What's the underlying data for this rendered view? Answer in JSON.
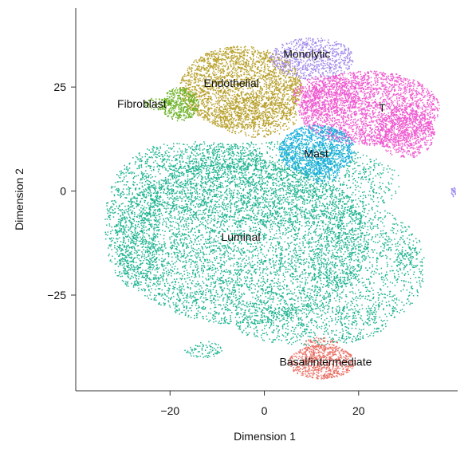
{
  "chart_data": {
    "type": "scatter",
    "xlabel": "Dimension 1",
    "ylabel": "Dimension 2",
    "xlim": [
      -40,
      41
    ],
    "ylim": [
      -48,
      44
    ],
    "x_ticks": [
      {
        "value": -20,
        "label": "−20"
      },
      {
        "value": 0,
        "label": "0"
      },
      {
        "value": 20,
        "label": "20"
      }
    ],
    "y_ticks": [
      {
        "value": 25,
        "label": "25"
      },
      {
        "value": 0,
        "label": "0"
      },
      {
        "value": -25,
        "label": "−25"
      }
    ],
    "grid": false,
    "legend": "none",
    "clusters": [
      {
        "name": "Luminal",
        "label": "Luminal",
        "color": "#1fb391",
        "label_pos": [
          -5,
          -11
        ],
        "blobs": [
          {
            "cx": -5,
            "cy": -12,
            "rx": 27,
            "ry": 20,
            "n": 5200
          },
          {
            "cx": 1,
            "cy": 2,
            "rx": 28,
            "ry": 10,
            "n": 1600
          },
          {
            "cx": -28,
            "cy": -8,
            "rx": 6,
            "ry": 15,
            "n": 700
          },
          {
            "cx": 22,
            "cy": -18,
            "rx": 12,
            "ry": 14,
            "n": 900
          },
          {
            "cx": 10,
            "cy": -32,
            "rx": 16,
            "ry": 5,
            "n": 600
          },
          {
            "cx": -14,
            "cy": 8,
            "rx": 14,
            "ry": 4,
            "n": 500
          },
          {
            "cx": -13,
            "cy": -38,
            "rx": 4,
            "ry": 2,
            "n": 80
          },
          {
            "cx": 30,
            "cy": -16,
            "rx": 3,
            "ry": 3,
            "n": 60
          }
        ]
      },
      {
        "name": "Endothelial",
        "label": "Endothelial",
        "color": "#b8a12d",
        "label_pos": [
          -7,
          26
        ],
        "blobs": [
          {
            "cx": -5,
            "cy": 25,
            "rx": 13,
            "ry": 10,
            "n": 2600
          },
          {
            "cx": -2,
            "cy": 18,
            "rx": 9,
            "ry": 5,
            "n": 400
          }
        ]
      },
      {
        "name": "Fibroblast",
        "label": "Fibroblast",
        "color": "#6cb227",
        "label_pos": [
          -26,
          21
        ],
        "blobs": [
          {
            "cx": -18,
            "cy": 21,
            "rx": 4,
            "ry": 4,
            "n": 420
          },
          {
            "cx": -23,
            "cy": 21,
            "rx": 3,
            "ry": 1.5,
            "n": 60
          }
        ]
      },
      {
        "name": "Monolytic",
        "label": "Monolytic",
        "color": "#a188ea",
        "label_pos": [
          9,
          33
        ],
        "blobs": [
          {
            "cx": 10,
            "cy": 32,
            "rx": 9,
            "ry": 5,
            "n": 700
          }
        ]
      },
      {
        "name": "T",
        "label": "T",
        "color": "#ee5bd0",
        "label_pos": [
          25,
          20
        ],
        "blobs": [
          {
            "cx": 22,
            "cy": 20,
            "rx": 15,
            "ry": 9,
            "n": 2600
          },
          {
            "cx": 30,
            "cy": 14,
            "rx": 6,
            "ry": 6,
            "n": 600
          },
          {
            "cx": 13,
            "cy": 23,
            "rx": 7,
            "ry": 5,
            "n": 500
          }
        ]
      },
      {
        "name": "Mast",
        "label": "Mast",
        "color": "#1ab0dc",
        "label_pos": [
          11,
          9
        ],
        "blobs": [
          {
            "cx": 11,
            "cy": 10,
            "rx": 8,
            "ry": 6,
            "n": 1100
          },
          {
            "cx": 12,
            "cy": 5,
            "rx": 4,
            "ry": 3,
            "n": 150
          }
        ]
      },
      {
        "name": "Basal/intermediate",
        "label": "Basal/intermediate",
        "color": "#ea7065",
        "label_pos": [
          13,
          -41
        ],
        "blobs": [
          {
            "cx": 12,
            "cy": -41,
            "rx": 7,
            "ry": 4,
            "n": 650
          },
          {
            "cx": 12,
            "cy": -37,
            "rx": 4,
            "ry": 2,
            "n": 100
          }
        ]
      },
      {
        "name": "",
        "label": "",
        "color": "#9b8ef0",
        "label_pos": null,
        "blobs": [
          {
            "cx": 40,
            "cy": 0,
            "rx": 0.6,
            "ry": 1.2,
            "n": 25
          }
        ]
      }
    ]
  }
}
